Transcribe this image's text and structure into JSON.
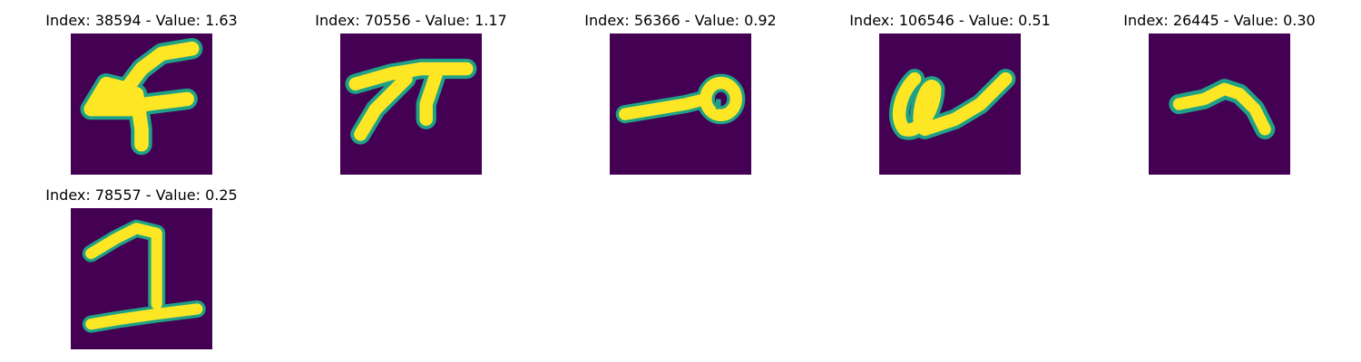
{
  "colors": {
    "background": "#440154",
    "foreground": "#fde725",
    "edge": "#1fa187"
  },
  "panels": [
    {
      "title": "Index: 38594 - Value: 1.63",
      "icon": "digit-image-4"
    },
    {
      "title": "Index: 70556 - Value: 1.17",
      "icon": "digit-image-7"
    },
    {
      "title": "Index: 56366 - Value: 0.92",
      "icon": "digit-image-9"
    },
    {
      "title": "Index: 106546 - Value: 0.51",
      "icon": "digit-image-a"
    },
    {
      "title": "Index: 26445 - Value: 0.30",
      "icon": "digit-image-7-short"
    },
    {
      "title": "Index: 78557 - Value: 0.25",
      "icon": "digit-image-1"
    }
  ]
}
